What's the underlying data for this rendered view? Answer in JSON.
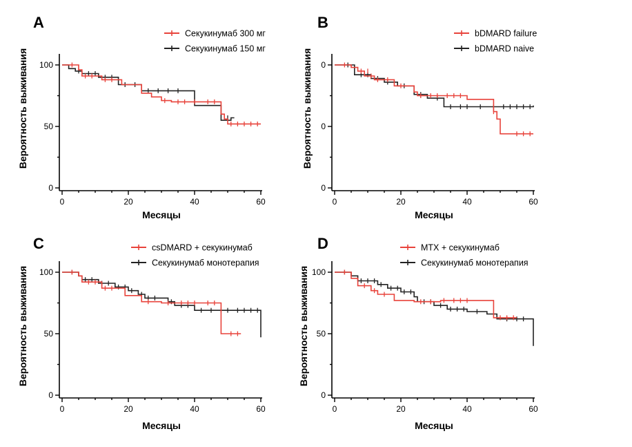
{
  "chart_data": [
    {
      "type": "line",
      "panel": "A",
      "xlabel": "Месяцы",
      "ylabel": "Вероятность выживания",
      "xlim": [
        0,
        60
      ],
      "ylim": [
        0,
        100
      ],
      "xticks": [
        "0",
        "20",
        "40",
        "60"
      ],
      "yticks": [
        "0",
        "50",
        "100"
      ],
      "legend_position": "top-right",
      "series": [
        {
          "name": "Секукинумаб 300 мг",
          "color": "#e8423a",
          "steps": [
            [
              0,
              100
            ],
            [
              5,
              96
            ],
            [
              6,
              91
            ],
            [
              12,
              88
            ],
            [
              18,
              84
            ],
            [
              24,
              77
            ],
            [
              27,
              74
            ],
            [
              30,
              71
            ],
            [
              33,
              70
            ],
            [
              48,
              60
            ],
            [
              49,
              56
            ],
            [
              50,
              52
            ],
            [
              60,
              52
            ]
          ],
          "censor": [
            [
              3,
              100
            ],
            [
              7,
              91
            ],
            [
              9,
              91
            ],
            [
              13,
              88
            ],
            [
              15,
              88
            ],
            [
              31,
              71
            ],
            [
              35,
              70
            ],
            [
              37,
              70
            ],
            [
              40,
              70
            ],
            [
              44,
              70
            ],
            [
              46,
              70
            ],
            [
              51,
              52
            ],
            [
              53,
              52
            ],
            [
              55,
              52
            ],
            [
              57,
              52
            ],
            [
              59,
              52
            ]
          ]
        },
        {
          "name": "Секукинумаб 150 мг",
          "color": "#222222",
          "steps": [
            [
              0,
              100
            ],
            [
              2,
              97
            ],
            [
              4,
              95
            ],
            [
              6,
              93
            ],
            [
              11,
              90
            ],
            [
              17,
              84
            ],
            [
              24,
              79
            ],
            [
              40,
              67
            ],
            [
              48,
              55
            ],
            [
              51,
              57
            ],
            [
              52,
              57
            ]
          ],
          "censor": [
            [
              5,
              95
            ],
            [
              8,
              93
            ],
            [
              10,
              93
            ],
            [
              13,
              90
            ],
            [
              15,
              90
            ],
            [
              19,
              84
            ],
            [
              22,
              84
            ],
            [
              26,
              79
            ],
            [
              29,
              79
            ],
            [
              32,
              79
            ],
            [
              35,
              79
            ],
            [
              50,
              57
            ]
          ]
        }
      ]
    },
    {
      "type": "line",
      "panel": "B",
      "xlabel": "Месяцы",
      "ylabel": "Вероятность выживания",
      "xlim": [
        0,
        60
      ],
      "ylim": [
        0,
        100
      ],
      "xticks": [
        "0",
        "20",
        "40",
        "60"
      ],
      "yticks": [
        "0",
        "0",
        "0"
      ],
      "legend_position": "top-right",
      "series": [
        {
          "name": "bDMARD failure",
          "color": "#e8423a",
          "steps": [
            [
              0,
              100
            ],
            [
              5,
              98
            ],
            [
              7,
              95
            ],
            [
              9,
              91
            ],
            [
              12,
              88
            ],
            [
              18,
              83
            ],
            [
              24,
              78
            ],
            [
              25,
              75
            ],
            [
              40,
              72
            ],
            [
              48,
              62
            ],
            [
              49,
              56
            ],
            [
              50,
              44
            ],
            [
              60,
              44
            ]
          ],
          "censor": [
            [
              3,
              100
            ],
            [
              8,
              95
            ],
            [
              10,
              95
            ],
            [
              11,
              91
            ],
            [
              13,
              88
            ],
            [
              16,
              88
            ],
            [
              20,
              83
            ],
            [
              26,
              75
            ],
            [
              29,
              75
            ],
            [
              31,
              75
            ],
            [
              34,
              75
            ],
            [
              36,
              75
            ],
            [
              38,
              75
            ],
            [
              48,
              62
            ],
            [
              55,
              44
            ],
            [
              57,
              44
            ],
            [
              59,
              44
            ]
          ]
        },
        {
          "name": "bDMARD naive",
          "color": "#222222",
          "steps": [
            [
              0,
              100
            ],
            [
              6,
              92
            ],
            [
              11,
              89
            ],
            [
              15,
              86
            ],
            [
              19,
              83
            ],
            [
              24,
              76
            ],
            [
              28,
              73
            ],
            [
              33,
              66
            ],
            [
              60,
              66
            ],
            [
              60,
              67
            ]
          ],
          "censor": [
            [
              4,
              100
            ],
            [
              8,
              92
            ],
            [
              10,
              92
            ],
            [
              13,
              89
            ],
            [
              16,
              86
            ],
            [
              21,
              83
            ],
            [
              26,
              76
            ],
            [
              31,
              73
            ],
            [
              35,
              66
            ],
            [
              38,
              66
            ],
            [
              40,
              66
            ],
            [
              44,
              66
            ],
            [
              48,
              66
            ],
            [
              51,
              66
            ],
            [
              53,
              66
            ],
            [
              55,
              66
            ],
            [
              57,
              66
            ],
            [
              59,
              66
            ]
          ]
        }
      ]
    },
    {
      "type": "line",
      "panel": "C",
      "xlabel": "Месяцы",
      "ylabel": "Вероятность выживания",
      "xlim": [
        0,
        60
      ],
      "ylim": [
        0,
        100
      ],
      "xticks": [
        "0",
        "20",
        "40",
        "60"
      ],
      "yticks": [
        "0",
        "50",
        "100"
      ],
      "legend_position": "top-right",
      "series": [
        {
          "name": "csDMARD + секукинумаб",
          "color": "#e8423a",
          "steps": [
            [
              0,
              100
            ],
            [
              5,
              97
            ],
            [
              6,
              92
            ],
            [
              12,
              87
            ],
            [
              19,
              81
            ],
            [
              24,
              76
            ],
            [
              30,
              75
            ],
            [
              48,
              50
            ],
            [
              54,
              50
            ]
          ],
          "censor": [
            [
              3,
              100
            ],
            [
              8,
              92
            ],
            [
              10,
              92
            ],
            [
              13,
              87
            ],
            [
              15,
              87
            ],
            [
              26,
              76
            ],
            [
              32,
              75
            ],
            [
              36,
              75
            ],
            [
              38,
              75
            ],
            [
              40,
              75
            ],
            [
              44,
              75
            ],
            [
              46,
              75
            ],
            [
              51,
              50
            ],
            [
              53,
              50
            ]
          ]
        },
        {
          "name": "Секукинумаб монотерапия",
          "color": "#222222",
          "steps": [
            [
              0,
              100
            ],
            [
              5,
              97
            ],
            [
              6,
              94
            ],
            [
              11,
              91
            ],
            [
              16,
              88
            ],
            [
              20,
              85
            ],
            [
              23,
              82
            ],
            [
              25,
              79
            ],
            [
              32,
              76
            ],
            [
              34,
              73
            ],
            [
              40,
              69
            ],
            [
              60,
              69
            ],
            [
              60,
              47
            ]
          ],
          "censor": [
            [
              3,
              100
            ],
            [
              7,
              94
            ],
            [
              9,
              94
            ],
            [
              12,
              91
            ],
            [
              14,
              91
            ],
            [
              17,
              88
            ],
            [
              19,
              88
            ],
            [
              21,
              85
            ],
            [
              24,
              82
            ],
            [
              26,
              79
            ],
            [
              28,
              79
            ],
            [
              33,
              76
            ],
            [
              36,
              73
            ],
            [
              38,
              73
            ],
            [
              42,
              69
            ],
            [
              45,
              69
            ],
            [
              48,
              69
            ],
            [
              50,
              69
            ],
            [
              53,
              69
            ],
            [
              55,
              69
            ],
            [
              57,
              69
            ],
            [
              59,
              69
            ]
          ]
        }
      ]
    },
    {
      "type": "line",
      "panel": "D",
      "xlabel": "Месяцы",
      "ylabel": "Вероятность выживания",
      "xlim": [
        0,
        60
      ],
      "ylim": [
        0,
        100
      ],
      "xticks": [
        "0",
        "20",
        "40",
        "60"
      ],
      "yticks": [
        "0",
        "50",
        "100"
      ],
      "legend_position": "top-right",
      "series": [
        {
          "name": "MTX + секукинумаб",
          "color": "#e8423a",
          "steps": [
            [
              0,
              100
            ],
            [
              5,
              95
            ],
            [
              7,
              89
            ],
            [
              11,
              85
            ],
            [
              13,
              82
            ],
            [
              18,
              77
            ],
            [
              24,
              76
            ],
            [
              32,
              77
            ],
            [
              48,
              63
            ],
            [
              55,
              63
            ]
          ],
          "censor": [
            [
              3,
              100
            ],
            [
              9,
              89
            ],
            [
              12,
              85
            ],
            [
              15,
              82
            ],
            [
              26,
              76
            ],
            [
              29,
              76
            ],
            [
              33,
              77
            ],
            [
              36,
              77
            ],
            [
              38,
              77
            ],
            [
              40,
              77
            ],
            [
              50,
              63
            ],
            [
              52,
              63
            ],
            [
              54,
              63
            ]
          ]
        },
        {
          "name": "Секукинумаб монотерапия",
          "color": "#222222",
          "steps": [
            [
              0,
              100
            ],
            [
              5,
              97
            ],
            [
              7,
              93
            ],
            [
              13,
              90
            ],
            [
              16,
              87
            ],
            [
              20,
              84
            ],
            [
              24,
              80
            ],
            [
              25,
              76
            ],
            [
              30,
              73
            ],
            [
              34,
              70
            ],
            [
              40,
              68
            ],
            [
              46,
              66
            ],
            [
              49,
              62
            ],
            [
              60,
              62
            ],
            [
              60,
              40
            ]
          ],
          "censor": [
            [
              3,
              100
            ],
            [
              8,
              93
            ],
            [
              10,
              93
            ],
            [
              12,
              93
            ],
            [
              14,
              90
            ],
            [
              17,
              87
            ],
            [
              19,
              87
            ],
            [
              21,
              84
            ],
            [
              23,
              84
            ],
            [
              27,
              76
            ],
            [
              29,
              76
            ],
            [
              32,
              73
            ],
            [
              35,
              70
            ],
            [
              37,
              70
            ],
            [
              39,
              70
            ],
            [
              43,
              68
            ],
            [
              52,
              62
            ],
            [
              55,
              62
            ],
            [
              57,
              62
            ]
          ]
        }
      ]
    }
  ]
}
